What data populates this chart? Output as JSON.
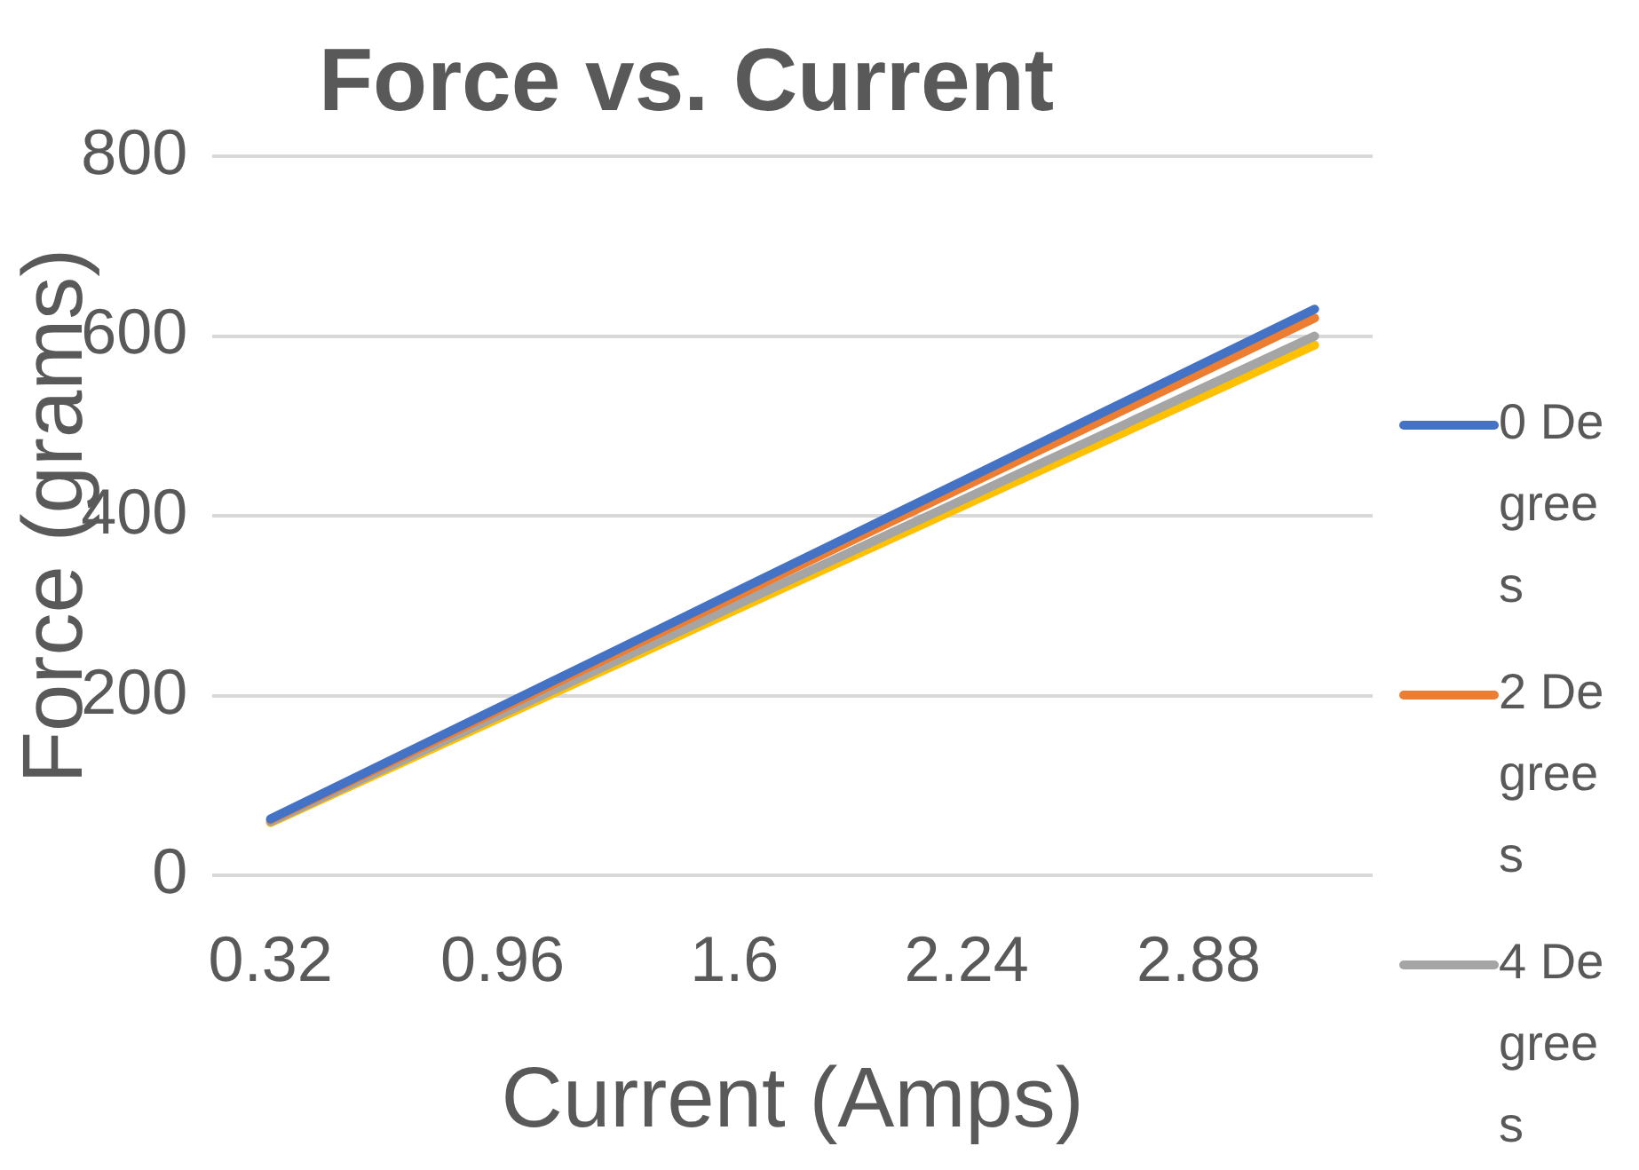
{
  "chart_data": {
    "type": "line",
    "title": "Force vs. Current",
    "xlabel": "Current (Amps)",
    "ylabel": "Force (grams)",
    "categories": [
      "0.32",
      null,
      "0.96",
      null,
      "1.6",
      null,
      "2.24",
      null,
      "2.88",
      null
    ],
    "series": [
      {
        "name": "0 Degrees",
        "color": "#4472c4",
        "values": [
          63,
          126,
          189,
          252,
          315,
          378,
          441,
          504,
          567,
          630
        ]
      },
      {
        "name": "2 Degrees",
        "color": "#ed7d31",
        "values": [
          62,
          124,
          186,
          248,
          310,
          372,
          434,
          496,
          558,
          620
        ]
      },
      {
        "name": "4 Degrees",
        "color": "#a5a5a5",
        "values": [
          60,
          120,
          180,
          240,
          300,
          360,
          420,
          480,
          540,
          600
        ]
      },
      {
        "color": "#ffc000",
        "values": [
          59,
          118,
          177,
          236,
          295,
          354,
          413,
          472,
          531,
          590
        ]
      }
    ],
    "ylim": [
      0,
      800
    ],
    "yticks": [
      0,
      200,
      400,
      600,
      800
    ],
    "grid": "y",
    "legend": "right",
    "marker": "none",
    "line_style": "solid"
  }
}
